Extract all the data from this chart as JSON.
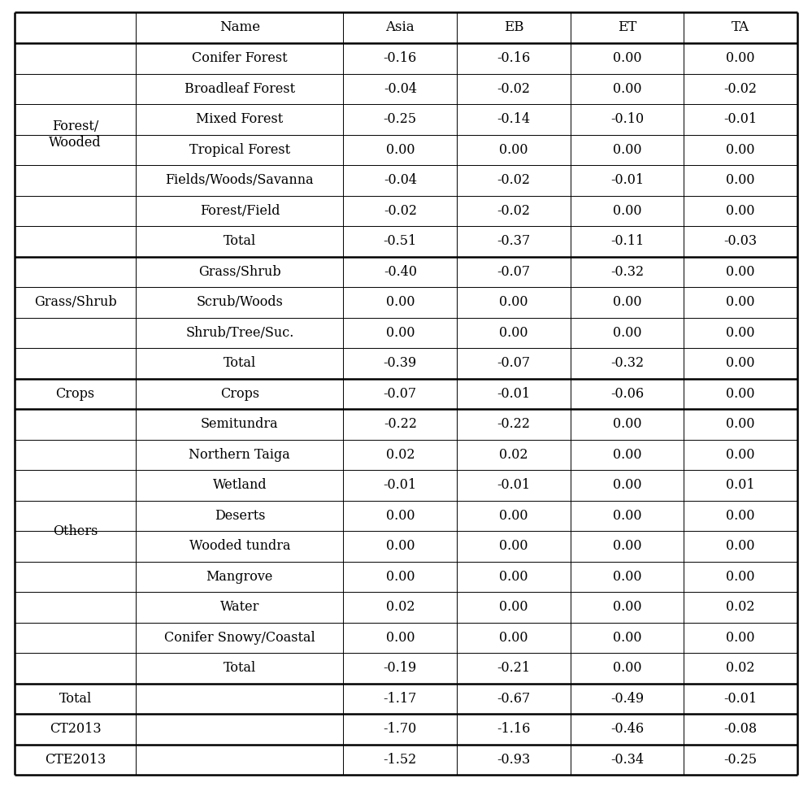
{
  "col_headers": [
    "",
    "Name",
    "Asia",
    "EB",
    "ET",
    "TA"
  ],
  "rows": [
    {
      "group": "Forest/\nWooded",
      "name": "Conifer Forest",
      "asia": "-0.16",
      "eb": "-0.16",
      "et": "0.00",
      "ta": "0.00"
    },
    {
      "group": "",
      "name": "Broadleaf Forest",
      "asia": "-0.04",
      "eb": "-0.02",
      "et": "0.00",
      "ta": "-0.02"
    },
    {
      "group": "",
      "name": "Mixed Forest",
      "asia": "-0.25",
      "eb": "-0.14",
      "et": "-0.10",
      "ta": "-0.01"
    },
    {
      "group": "",
      "name": "Tropical Forest",
      "asia": "0.00",
      "eb": "0.00",
      "et": "0.00",
      "ta": "0.00"
    },
    {
      "group": "",
      "name": "Fields/Woods/Savanna",
      "asia": "-0.04",
      "eb": "-0.02",
      "et": "-0.01",
      "ta": "0.00"
    },
    {
      "group": "",
      "name": "Forest/Field",
      "asia": "-0.02",
      "eb": "-0.02",
      "et": "0.00",
      "ta": "0.00"
    },
    {
      "group": "",
      "name": "Total",
      "asia": "-0.51",
      "eb": "-0.37",
      "et": "-0.11",
      "ta": "-0.03"
    },
    {
      "group": "Grass/Shrub",
      "name": "Grass/Shrub",
      "asia": "-0.40",
      "eb": "-0.07",
      "et": "-0.32",
      "ta": "0.00"
    },
    {
      "group": "",
      "name": "Scrub/Woods",
      "asia": "0.00",
      "eb": "0.00",
      "et": "0.00",
      "ta": "0.00"
    },
    {
      "group": "",
      "name": "Shrub/Tree/Suc.",
      "asia": "0.00",
      "eb": "0.00",
      "et": "0.00",
      "ta": "0.00"
    },
    {
      "group": "",
      "name": "Total",
      "asia": "-0.39",
      "eb": "-0.07",
      "et": "-0.32",
      "ta": "0.00"
    },
    {
      "group": "Crops",
      "name": "Crops",
      "asia": "-0.07",
      "eb": "-0.01",
      "et": "-0.06",
      "ta": "0.00"
    },
    {
      "group": "Others",
      "name": "Semitundra",
      "asia": "-0.22",
      "eb": "-0.22",
      "et": "0.00",
      "ta": "0.00"
    },
    {
      "group": "",
      "name": "Northern Taiga",
      "asia": "0.02",
      "eb": "0.02",
      "et": "0.00",
      "ta": "0.00"
    },
    {
      "group": "",
      "name": "Wetland",
      "asia": "-0.01",
      "eb": "-0.01",
      "et": "0.00",
      "ta": "0.01"
    },
    {
      "group": "",
      "name": "Deserts",
      "asia": "0.00",
      "eb": "0.00",
      "et": "0.00",
      "ta": "0.00"
    },
    {
      "group": "",
      "name": "Wooded tundra",
      "asia": "0.00",
      "eb": "0.00",
      "et": "0.00",
      "ta": "0.00"
    },
    {
      "group": "",
      "name": "Mangrove",
      "asia": "0.00",
      "eb": "0.00",
      "et": "0.00",
      "ta": "0.00"
    },
    {
      "group": "",
      "name": "Water",
      "asia": "0.02",
      "eb": "0.00",
      "et": "0.00",
      "ta": "0.02"
    },
    {
      "group": "",
      "name": "Conifer Snowy/Coastal",
      "asia": "0.00",
      "eb": "0.00",
      "et": "0.00",
      "ta": "0.00"
    },
    {
      "group": "",
      "name": "Total",
      "asia": "-0.19",
      "eb": "-0.21",
      "et": "0.00",
      "ta": "0.02"
    },
    {
      "group": "Total",
      "name": "",
      "asia": "-1.17",
      "eb": "-0.67",
      "et": "-0.49",
      "ta": "-0.01"
    },
    {
      "group": "CT2013",
      "name": "",
      "asia": "-1.70",
      "eb": "-1.16",
      "et": "-0.46",
      "ta": "-0.08"
    },
    {
      "group": "CTE2013",
      "name": "",
      "asia": "-1.52",
      "eb": "-0.93",
      "et": "-0.34",
      "ta": "-0.25"
    }
  ],
  "is_total_row": [
    false,
    false,
    false,
    false,
    false,
    false,
    true,
    false,
    false,
    false,
    true,
    false,
    false,
    false,
    false,
    false,
    false,
    false,
    false,
    false,
    true,
    true,
    false,
    false
  ],
  "thick_after_rows": [
    6,
    10,
    11,
    20,
    21,
    22
  ],
  "groups_info": [
    {
      "label": "Forest/\nWooded",
      "start": 0,
      "end": 5
    },
    {
      "label": "Grass/Shrub",
      "start": 7,
      "end": 9
    },
    {
      "label": "Crops",
      "start": 11,
      "end": 11
    },
    {
      "label": "Others",
      "start": 12,
      "end": 19
    },
    {
      "label": "Total",
      "start": 21,
      "end": 21
    },
    {
      "label": "CT2013",
      "start": 22,
      "end": 22
    },
    {
      "label": "CTE2013",
      "start": 23,
      "end": 23
    }
  ],
  "font_family": "serif",
  "font_size": 11.5,
  "header_font_size": 12
}
